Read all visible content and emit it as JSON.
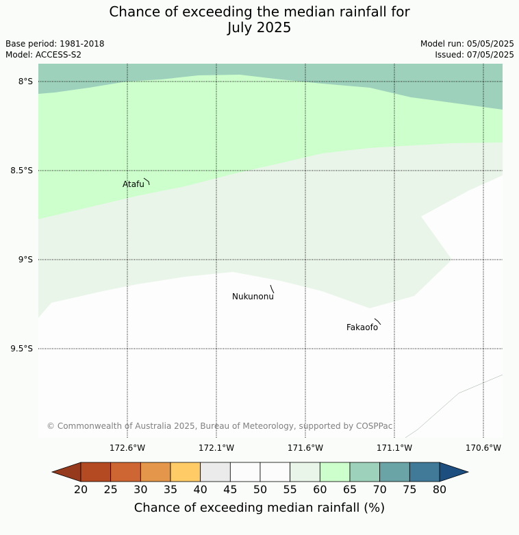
{
  "title": {
    "line1": "Chance of exceeding the median rainfall for",
    "line2": "July 2025"
  },
  "meta": {
    "base_period": "Base period: 1981-2018",
    "model": "Model: ACCESS-S2",
    "model_run": "Model run: 05/05/2025",
    "issued": "Issued: 07/05/2025"
  },
  "map": {
    "lat_labels": [
      "8°S",
      "8.5°S",
      "9°S",
      "9.5°S"
    ],
    "lon_labels": [
      "172.6°W",
      "172.1°W",
      "171.6°W",
      "171.1°W",
      "170.6°W"
    ],
    "places": [
      {
        "name": "Atafu"
      },
      {
        "name": "Nukunonu"
      },
      {
        "name": "Fakaofo"
      }
    ],
    "copyright": "© Commonwealth of Australia 2025, Bureau of Meteorology, supported by COSPPac",
    "category_colors": {
      "65-70": "#9ed1bb",
      "60-65": "#ccffcc",
      "55-60": "#eaf5ea",
      "50-55": "#fcfdfc"
    }
  },
  "colorbar": {
    "ticks": [
      "20",
      "25",
      "30",
      "35",
      "40",
      "45",
      "50",
      "55",
      "60",
      "65",
      "70",
      "75",
      "80"
    ],
    "colors": [
      "#b34a22",
      "#cd6632",
      "#e4964a",
      "#fecb67",
      "#ebebeb",
      "#fcfcfc",
      "#fcfcfc",
      "#eaf5ea",
      "#ccffcc",
      "#9ed1bb",
      "#6ba4a7",
      "#417a99"
    ],
    "under_color": "#953a1c",
    "over_color": "#1c4f80",
    "label": "Chance of exceeding median rainfall (%)"
  }
}
